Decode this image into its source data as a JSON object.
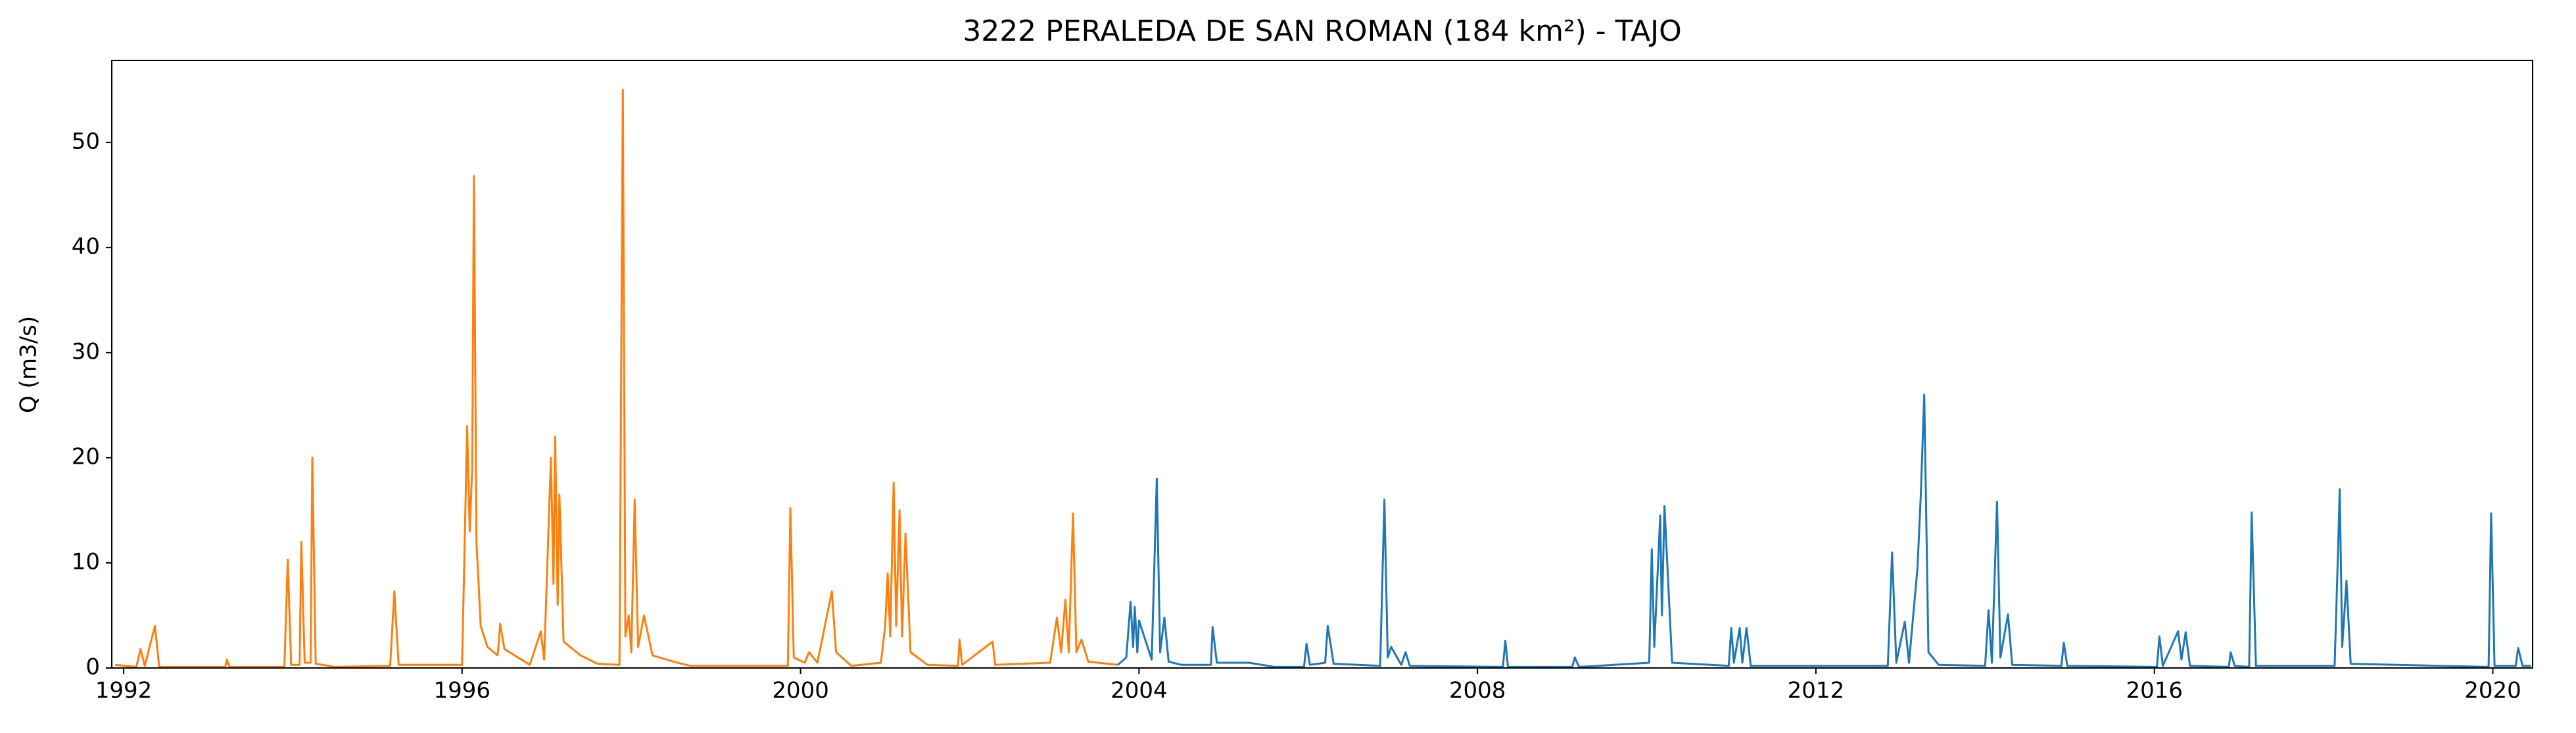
{
  "chart_data": {
    "type": "line",
    "title": "3222 PERALEDA DE SAN ROMAN (184 km²) - TAJO",
    "y_label": "Q (m3/s)",
    "xlim": [
      1991.86,
      2020.47
    ],
    "xticks": [
      1992,
      1996,
      2000,
      2004,
      2008,
      2012,
      2016,
      2020
    ],
    "ylim": [
      0,
      57.8
    ],
    "yticks": [
      0,
      10,
      20,
      30,
      40,
      50
    ],
    "grid": false,
    "series": [
      {
        "color": "#ff7f0e",
        "x": [
          1991.9,
          1992.15,
          1992.2,
          1992.25,
          1992.37,
          1992.42,
          1993.2,
          1993.22,
          1993.25,
          1993.9,
          1993.94,
          1993.98,
          1994.08,
          1994.1,
          1994.14,
          1994.21,
          1994.23,
          1994.27,
          1994.5,
          1995.15,
          1995.2,
          1995.25,
          1996.0,
          1996.06,
          1996.09,
          1996.12,
          1996.14,
          1996.17,
          1996.22,
          1996.3,
          1996.42,
          1996.45,
          1996.5,
          1996.8,
          1996.93,
          1996.97,
          1997.05,
          1997.08,
          1997.1,
          1997.13,
          1997.15,
          1997.2,
          1997.4,
          1997.6,
          1997.86,
          1997.9,
          1997.93,
          1997.97,
          1998.0,
          1998.04,
          1998.08,
          1998.15,
          1998.25,
          1998.5,
          1998.7,
          1999.85,
          1999.88,
          1999.92,
          2000.05,
          2000.1,
          2000.2,
          2000.37,
          2000.42,
          2000.6,
          2000.95,
          2001.0,
          2001.03,
          2001.06,
          2001.1,
          2001.13,
          2001.17,
          2001.2,
          2001.24,
          2001.3,
          2001.5,
          2001.86,
          2001.88,
          2001.91,
          2002.27,
          2002.3,
          2002.95,
          2003.03,
          2003.08,
          2003.13,
          2003.17,
          2003.22,
          2003.26,
          2003.32,
          2003.4,
          2003.75
        ],
        "values": [
          0.3,
          0.1,
          1.8,
          0.2,
          4.0,
          0.1,
          0.1,
          0.8,
          0.1,
          0.1,
          10.3,
          0.3,
          0.3,
          12.0,
          0.5,
          0.5,
          20.0,
          0.4,
          0.1,
          0.2,
          7.3,
          0.3,
          0.3,
          23.0,
          13.0,
          19.0,
          46.8,
          12.0,
          4.0,
          2.0,
          1.2,
          4.2,
          1.8,
          0.3,
          3.5,
          0.8,
          20.0,
          8.0,
          22.0,
          6.0,
          16.5,
          2.5,
          1.2,
          0.4,
          0.3,
          55.0,
          3.0,
          5.0,
          1.5,
          16.0,
          2.0,
          5.0,
          1.2,
          0.6,
          0.2,
          0.2,
          15.2,
          1.0,
          0.5,
          1.5,
          0.5,
          7.3,
          1.5,
          0.2,
          0.5,
          4.0,
          9.0,
          3.0,
          17.6,
          4.0,
          15.0,
          3.0,
          12.8,
          1.5,
          0.3,
          0.2,
          2.7,
          0.3,
          2.5,
          0.3,
          0.5,
          4.8,
          1.5,
          6.5,
          1.5,
          14.7,
          1.5,
          2.7,
          0.6,
          0.3
        ]
      },
      {
        "color": "#1f77b4",
        "x": [
          2003.75,
          2003.85,
          2003.9,
          2003.93,
          2003.95,
          2003.98,
          2004.0,
          2004.15,
          2004.21,
          2004.25,
          2004.3,
          2004.35,
          2004.5,
          2004.85,
          2004.87,
          2004.92,
          2005.3,
          2005.6,
          2005.95,
          2005.98,
          2006.02,
          2006.2,
          2006.23,
          2006.3,
          2006.85,
          2006.9,
          2006.94,
          2006.98,
          2007.1,
          2007.15,
          2007.2,
          2008.3,
          2008.33,
          2008.36,
          2009.12,
          2009.15,
          2009.2,
          2010.03,
          2010.06,
          2010.09,
          2010.16,
          2010.18,
          2010.21,
          2010.3,
          2010.97,
          2011.0,
          2011.03,
          2011.1,
          2011.13,
          2011.18,
          2011.23,
          2012.85,
          2012.9,
          2012.95,
          2013.05,
          2013.1,
          2013.2,
          2013.24,
          2013.28,
          2013.33,
          2013.45,
          2014.0,
          2014.04,
          2014.08,
          2014.14,
          2014.18,
          2014.27,
          2014.32,
          2014.9,
          2014.93,
          2014.97,
          2016.03,
          2016.06,
          2016.1,
          2016.28,
          2016.32,
          2016.37,
          2016.42,
          2016.88,
          2016.9,
          2016.95,
          2017.12,
          2017.15,
          2017.2,
          2018.13,
          2018.17,
          2018.19,
          2018.22,
          2018.27,
          2018.32,
          2019.95,
          2019.98,
          2020.02,
          2020.27,
          2020.3,
          2020.35,
          2020.45
        ],
        "values": [
          0.3,
          1.0,
          6.3,
          2.0,
          5.8,
          1.5,
          4.5,
          0.8,
          18.0,
          1.5,
          4.8,
          0.6,
          0.3,
          0.3,
          3.9,
          0.5,
          0.5,
          0.1,
          0.1,
          2.3,
          0.3,
          0.5,
          4.0,
          0.4,
          0.2,
          16.0,
          1.0,
          2.0,
          0.3,
          1.5,
          0.2,
          0.1,
          2.6,
          0.1,
          0.1,
          1.0,
          0.1,
          0.5,
          11.3,
          2.0,
          14.5,
          5.0,
          15.4,
          0.5,
          0.2,
          3.8,
          0.5,
          3.8,
          0.5,
          3.8,
          0.2,
          0.2,
          11.0,
          0.5,
          4.4,
          0.5,
          9.5,
          16.5,
          26.0,
          1.5,
          0.3,
          0.2,
          5.5,
          0.5,
          15.8,
          1.0,
          5.1,
          0.3,
          0.2,
          2.4,
          0.2,
          0.1,
          3.0,
          0.2,
          3.5,
          0.8,
          3.4,
          0.2,
          0.1,
          1.5,
          0.2,
          0.1,
          14.8,
          0.2,
          0.2,
          11.0,
          17.0,
          2.0,
          8.3,
          0.4,
          0.1,
          14.7,
          0.2,
          0.2,
          1.9,
          0.2,
          0.2
        ]
      }
    ]
  }
}
